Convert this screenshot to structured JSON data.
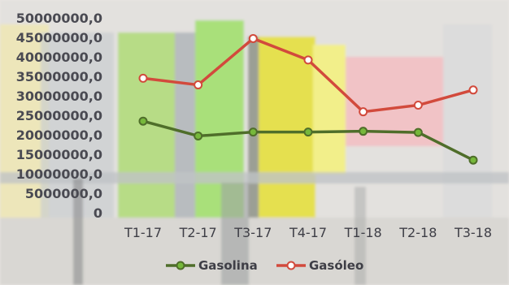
{
  "chart_data": {
    "type": "line",
    "title": "",
    "xlabel": "",
    "ylabel": "",
    "categories": [
      "T1-17",
      "T2-17",
      "T3-17",
      "T4-17",
      "T1-18",
      "T2-18",
      "T3-18"
    ],
    "y_tick_labels": [
      "50000000,0",
      "45000000,0",
      "40000000,0",
      "35000000,0",
      "30000000,0",
      "25000000,0",
      "20000000,0",
      "15000000,0",
      "10000000,0",
      "5000000,0",
      "0"
    ],
    "y_tick_values": [
      50000000,
      45000000,
      40000000,
      35000000,
      30000000,
      25000000,
      20000000,
      15000000,
      10000000,
      5000000,
      0
    ],
    "ylim": [
      0,
      50000000
    ],
    "grid": false,
    "legend_position": "bottom",
    "series": [
      {
        "name": "Gasolina",
        "color": "#4f6e2a",
        "marker_color": "#76b83b",
        "values": [
          23500000,
          19700000,
          20700000,
          20700000,
          20900000,
          20600000,
          13500000
        ]
      },
      {
        "name": "Gasóleo",
        "color": "#d24a3c",
        "marker_color": "#ffffff",
        "values": [
          34500000,
          32800000,
          44700000,
          39200000,
          25900000,
          27600000,
          31500000
        ]
      }
    ]
  }
}
